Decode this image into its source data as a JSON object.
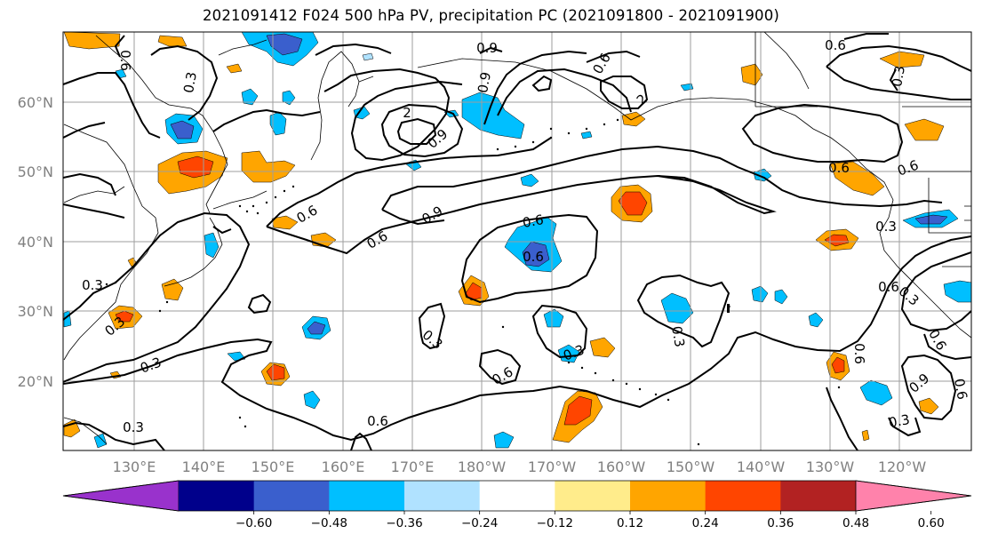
{
  "title": "2021091412 F024 500 hPa PV, precipitation PC (2021091800 - 2021091900)",
  "lat_labels": [
    "60°N",
    "50°N",
    "40°N",
    "30°N",
    "20°N"
  ],
  "lon_labels": [
    "130°E",
    "140°E",
    "150°E",
    "160°E",
    "170°E",
    "180°W",
    "170°W",
    "160°W",
    "150°W",
    "140°W",
    "130°W",
    "120°W"
  ],
  "colorbar": {
    "colors": [
      "#9932cc",
      "#00008b",
      "#3a5fcd",
      "#00bfff",
      "#b0e2ff",
      "#ffffff",
      "#ffec8b",
      "#ffa500",
      "#ff4500",
      "#b22222",
      "#ff82ab"
    ],
    "tick_labels": [
      "−0.60",
      "−0.48",
      "−0.36",
      "−0.24",
      "−0.12",
      "0.12",
      "0.24",
      "0.36",
      "0.48",
      "0.60"
    ]
  },
  "contour_labels": [
    "0.9",
    "0.6",
    "0.3",
    "0.9",
    "0.6",
    "2",
    "0.9",
    "0.6",
    "0.9",
    "0.6",
    "0.3",
    "0.6",
    "0.3",
    "0.3",
    "0.6",
    "0.3",
    "0.6",
    "0.3",
    "0.3",
    "0.3",
    "0.6",
    "0.6",
    "0.3",
    "0.6",
    "0.6",
    "0.3",
    "0.6",
    "0.3",
    "0.6",
    "2",
    "0.6",
    "0.9",
    "0.3",
    "0.6"
  ]
}
